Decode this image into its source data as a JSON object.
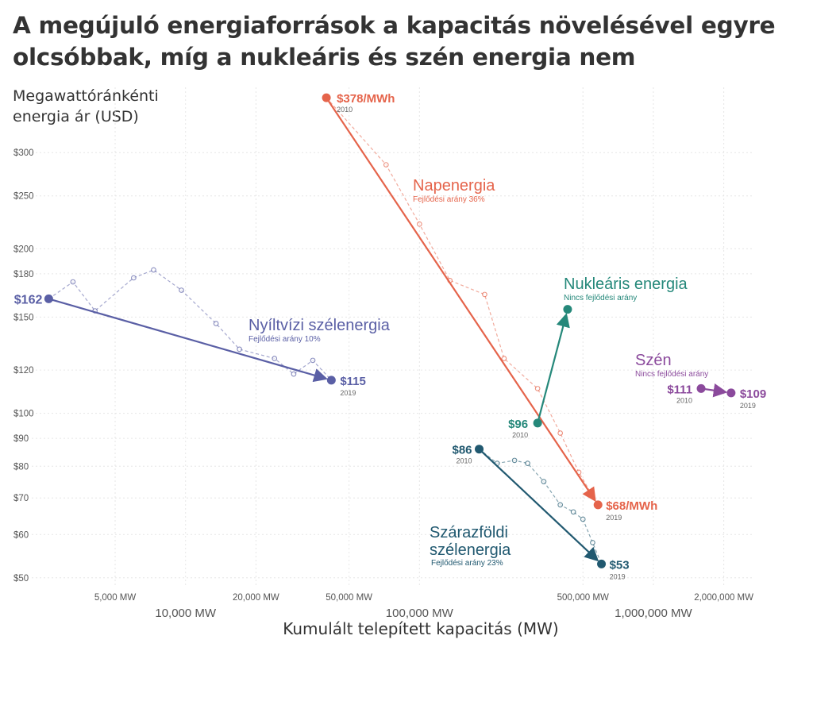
{
  "chart_data": {
    "type": "line",
    "title": "A megújuló energiaforrások a kapacitás növelésével egyre olcsóbbak, míg a nukleáris és szén energia nem",
    "ylabel_lines": [
      "Megawattóránkénti",
      "energia ár (USD)"
    ],
    "xlabel": "Kumulált telepített kapacitás (MW)",
    "x_scale": "log",
    "y_scale": "log",
    "xlim": [
      2200,
      2700000
    ],
    "ylim": [
      48,
      395
    ],
    "grid": true,
    "y_ticks": [
      {
        "value": 300,
        "label": "$300"
      },
      {
        "value": 250,
        "label": "$250"
      },
      {
        "value": 200,
        "label": "$200"
      },
      {
        "value": 180,
        "label": "$180"
      },
      {
        "value": 150,
        "label": "$150"
      },
      {
        "value": 120,
        "label": "$120"
      },
      {
        "value": 100,
        "label": "$100"
      },
      {
        "value": 90,
        "label": "$90"
      },
      {
        "value": 80,
        "label": "$80"
      },
      {
        "value": 70,
        "label": "$70"
      },
      {
        "value": 60,
        "label": "$60"
      },
      {
        "value": 50,
        "label": "$50"
      }
    ],
    "x_minor_ticks": [
      {
        "value": 5000,
        "label": "5,000 MW"
      },
      {
        "value": 20000,
        "label": "20,000 MW"
      },
      {
        "value": 50000,
        "label": "50,000 MW"
      },
      {
        "value": 500000,
        "label": "500,000 MW"
      },
      {
        "value": 2000000,
        "label": "2,000,000 MW"
      }
    ],
    "x_major_ticks": [
      {
        "value": 10000,
        "label": "10,000 MW"
      },
      {
        "value": 100000,
        "label": "100,000 MW"
      },
      {
        "value": 1000000,
        "label": "1,000,000 MW"
      }
    ],
    "series": [
      {
        "key": "solar",
        "name": "Napenergia",
        "subtitle": "Fejlődési arány 36%",
        "color": "#e5644b",
        "start": {
          "x": 40000,
          "y": 378,
          "label": "$378/MWh",
          "year": "2010"
        },
        "end": {
          "x": 580000,
          "y": 68,
          "label": "$68/MWh",
          "year": "2019"
        },
        "points": [
          {
            "x": 40000,
            "y": 378
          },
          {
            "x": 72000,
            "y": 285
          },
          {
            "x": 100000,
            "y": 222
          },
          {
            "x": 135000,
            "y": 175
          },
          {
            "x": 190000,
            "y": 165
          },
          {
            "x": 230000,
            "y": 126
          },
          {
            "x": 320000,
            "y": 111
          },
          {
            "x": 400000,
            "y": 92
          },
          {
            "x": 480000,
            "y": 78
          },
          {
            "x": 580000,
            "y": 68
          }
        ]
      },
      {
        "key": "offshore",
        "name": "Nyíltvízi szélenergia",
        "subtitle": "Fejlődési arány 10%",
        "color": "#5a5fa5",
        "start": {
          "x": 2600,
          "y": 162,
          "label": "$162",
          "year": ""
        },
        "end": {
          "x": 42000,
          "y": 115,
          "label": "$115",
          "year": "2019"
        },
        "points": [
          {
            "x": 2600,
            "y": 162
          },
          {
            "x": 3300,
            "y": 174
          },
          {
            "x": 4100,
            "y": 154
          },
          {
            "x": 6000,
            "y": 177
          },
          {
            "x": 7300,
            "y": 183
          },
          {
            "x": 9600,
            "y": 168
          },
          {
            "x": 13500,
            "y": 146
          },
          {
            "x": 17000,
            "y": 131
          },
          {
            "x": 24000,
            "y": 126
          },
          {
            "x": 29000,
            "y": 118
          },
          {
            "x": 35000,
            "y": 125
          },
          {
            "x": 42000,
            "y": 115
          }
        ]
      },
      {
        "key": "nuclear",
        "name": "Nukleáris energia",
        "subtitle": "Nincs fejlődési arány",
        "color": "#25887a",
        "start": {
          "x": 320000,
          "y": 96,
          "label": "$96",
          "year": "2010"
        },
        "end": {
          "x": 430000,
          "y": 155,
          "label": "",
          "year": ""
        },
        "points": []
      },
      {
        "key": "onshore",
        "name_lines": [
          "Szárazföldi",
          "szélenergia"
        ],
        "subtitle": "Fejlődési arány 23%",
        "color": "#215970",
        "start": {
          "x": 180000,
          "y": 86,
          "label": "$86",
          "year": "2010"
        },
        "end": {
          "x": 600000,
          "y": 53,
          "label": "$53",
          "year": "2019"
        },
        "points": [
          {
            "x": 180000,
            "y": 86
          },
          {
            "x": 215000,
            "y": 81
          },
          {
            "x": 255000,
            "y": 82
          },
          {
            "x": 290000,
            "y": 81
          },
          {
            "x": 340000,
            "y": 75
          },
          {
            "x": 400000,
            "y": 68
          },
          {
            "x": 455000,
            "y": 66
          },
          {
            "x": 500000,
            "y": 64
          },
          {
            "x": 550000,
            "y": 58
          },
          {
            "x": 600000,
            "y": 53
          }
        ]
      },
      {
        "key": "coal",
        "name": "Szén",
        "subtitle": "Nincs fejlődési arány",
        "color": "#8b4a9c",
        "start": {
          "x": 1600000,
          "y": 111,
          "label": "$111",
          "year": "2010"
        },
        "end": {
          "x": 2150000,
          "y": 109,
          "label": "$109",
          "year": "2019"
        },
        "points": []
      }
    ]
  }
}
